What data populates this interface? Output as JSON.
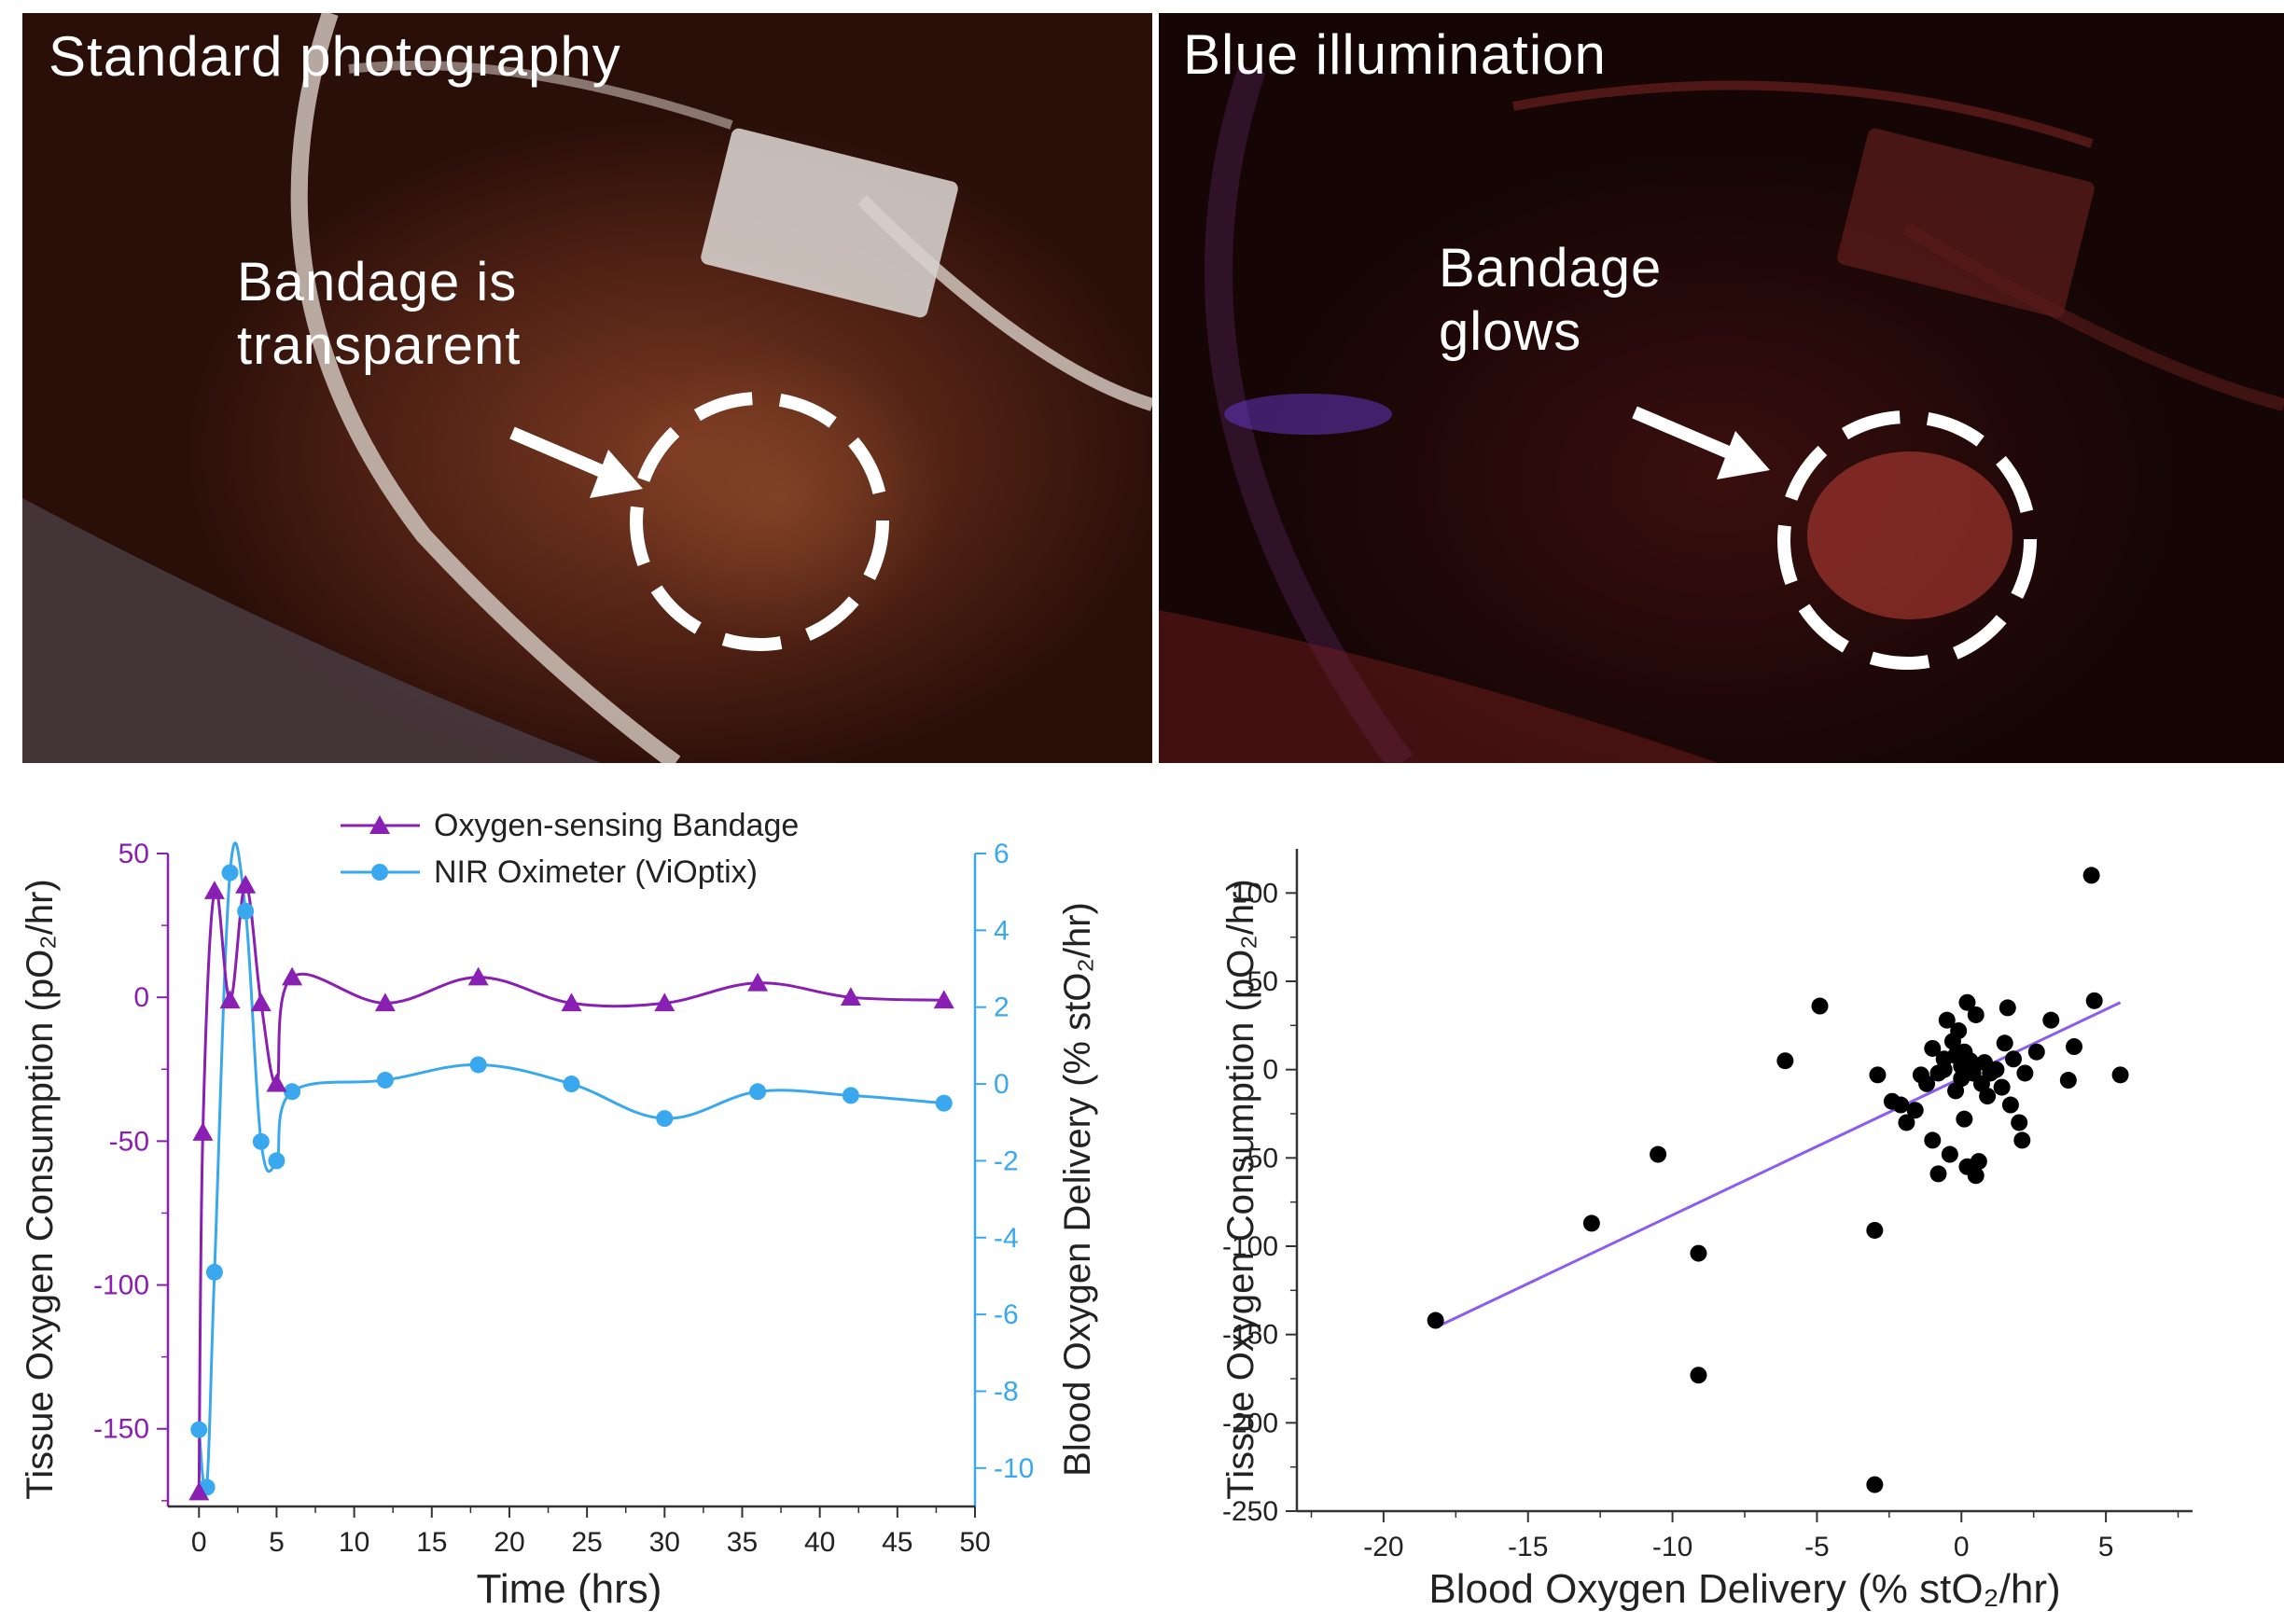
{
  "photos": {
    "left": {
      "title": "Standard photography",
      "label_line1": "Bandage is",
      "label_line2": "transparent"
    },
    "right": {
      "title": "Blue illumination",
      "label_line1": "Bandage",
      "label_line2": "glows"
    }
  },
  "colors": {
    "bandage": "#8a1fb3",
    "oximeter": "#3aa8ee",
    "fit_line": "#8c5cf0",
    "scatter": "#000000"
  },
  "chart_data": [
    {
      "type": "line",
      "xlabel": "Time (hrs)",
      "ylabel_left": "Tissue Oxygen Consumption (pO₂/hr)",
      "ylabel_right": "Blood Oxygen Delivery (% stO₂/hr)",
      "xlim": [
        -2,
        50
      ],
      "x_ticks": [
        0,
        5,
        10,
        15,
        20,
        25,
        30,
        35,
        40,
        45,
        50
      ],
      "ylim_left": [
        -177,
        50
      ],
      "y_ticks_left": [
        50,
        0,
        -50,
        -100,
        -150
      ],
      "ylim_right": [
        -11,
        6
      ],
      "y_ticks_right": [
        6,
        4,
        2,
        0,
        -2,
        -4,
        -6,
        -8,
        -10
      ],
      "legend_position": "top",
      "series": [
        {
          "name": "Oxygen-sensing Bandage",
          "axis": "left",
          "marker": "triangle",
          "x": [
            0,
            0.25,
            1,
            2,
            3,
            4,
            5,
            6,
            12,
            18,
            24,
            30,
            36,
            42,
            48
          ],
          "y": [
            -172,
            -47,
            37,
            -1,
            39,
            -2,
            -30,
            7,
            -2,
            7,
            -2,
            -2,
            5,
            0,
            -1
          ]
        },
        {
          "name": "NIR Oximeter (ViOptix)",
          "axis": "right",
          "marker": "circle",
          "x": [
            0,
            0.5,
            1,
            2,
            3,
            4,
            5,
            6,
            12,
            18,
            24,
            30,
            36,
            42,
            48
          ],
          "y": [
            -9.0,
            -10.5,
            -4.9,
            5.5,
            4.5,
            -1.5,
            -2.0,
            -0.2,
            0.1,
            0.5,
            0.0,
            -0.9,
            -0.2,
            -0.3,
            -0.5
          ]
        }
      ]
    },
    {
      "type": "scatter",
      "xlabel": "Blood Oxygen Delivery (% stO₂/hr)",
      "ylabel": "Tissue Oxygen Consumption (pO₂/hr)",
      "xlim": [
        -23,
        8
      ],
      "x_ticks": [
        -20,
        -15,
        -10,
        -5,
        0,
        5
      ],
      "ylim": [
        -250,
        125
      ],
      "y_ticks": [
        100,
        50,
        0,
        -50,
        -100,
        -150,
        -200,
        -250
      ],
      "points": [
        [
          -18.2,
          -142
        ],
        [
          -12.8,
          -87
        ],
        [
          -10.5,
          -48
        ],
        [
          -9.1,
          -104
        ],
        [
          -9.1,
          -173
        ],
        [
          -6.1,
          5
        ],
        [
          -4.9,
          36
        ],
        [
          -3.0,
          -91
        ],
        [
          -3.0,
          -235
        ],
        [
          -2.9,
          -3
        ],
        [
          -2.4,
          -18
        ],
        [
          -2.1,
          -20
        ],
        [
          -1.9,
          -30
        ],
        [
          -1.6,
          -23
        ],
        [
          -1.4,
          -3
        ],
        [
          -1.2,
          -8
        ],
        [
          -1.0,
          -40
        ],
        [
          -1.0,
          12
        ],
        [
          -0.8,
          -2
        ],
        [
          -0.8,
          -59
        ],
        [
          -0.6,
          6
        ],
        [
          -0.6,
          0
        ],
        [
          -0.5,
          28
        ],
        [
          -0.4,
          -48
        ],
        [
          -0.3,
          16
        ],
        [
          -0.2,
          8
        ],
        [
          -0.2,
          -12
        ],
        [
          -0.1,
          22
        ],
        [
          0.0,
          -5
        ],
        [
          0.0,
          2
        ],
        [
          0.1,
          10
        ],
        [
          0.1,
          -28
        ],
        [
          0.2,
          38
        ],
        [
          0.2,
          -55
        ],
        [
          0.3,
          5
        ],
        [
          0.4,
          -2
        ],
        [
          0.5,
          31
        ],
        [
          0.5,
          -60
        ],
        [
          0.6,
          -52
        ],
        [
          0.7,
          -8
        ],
        [
          0.8,
          4
        ],
        [
          0.9,
          -15
        ],
        [
          1.0,
          -2
        ],
        [
          1.2,
          0
        ],
        [
          1.4,
          -10
        ],
        [
          1.5,
          15
        ],
        [
          1.6,
          35
        ],
        [
          1.7,
          -20
        ],
        [
          1.8,
          6
        ],
        [
          2.0,
          -30
        ],
        [
          2.1,
          -40
        ],
        [
          2.2,
          -2
        ],
        [
          2.6,
          10
        ],
        [
          3.1,
          28
        ],
        [
          3.7,
          -6
        ],
        [
          3.9,
          13
        ],
        [
          4.5,
          110
        ],
        [
          4.6,
          39
        ],
        [
          5.5,
          -3
        ]
      ],
      "fit_line": {
        "x": [
          -18.2,
          5.5
        ],
        "y": [
          -146,
          38
        ]
      }
    }
  ]
}
